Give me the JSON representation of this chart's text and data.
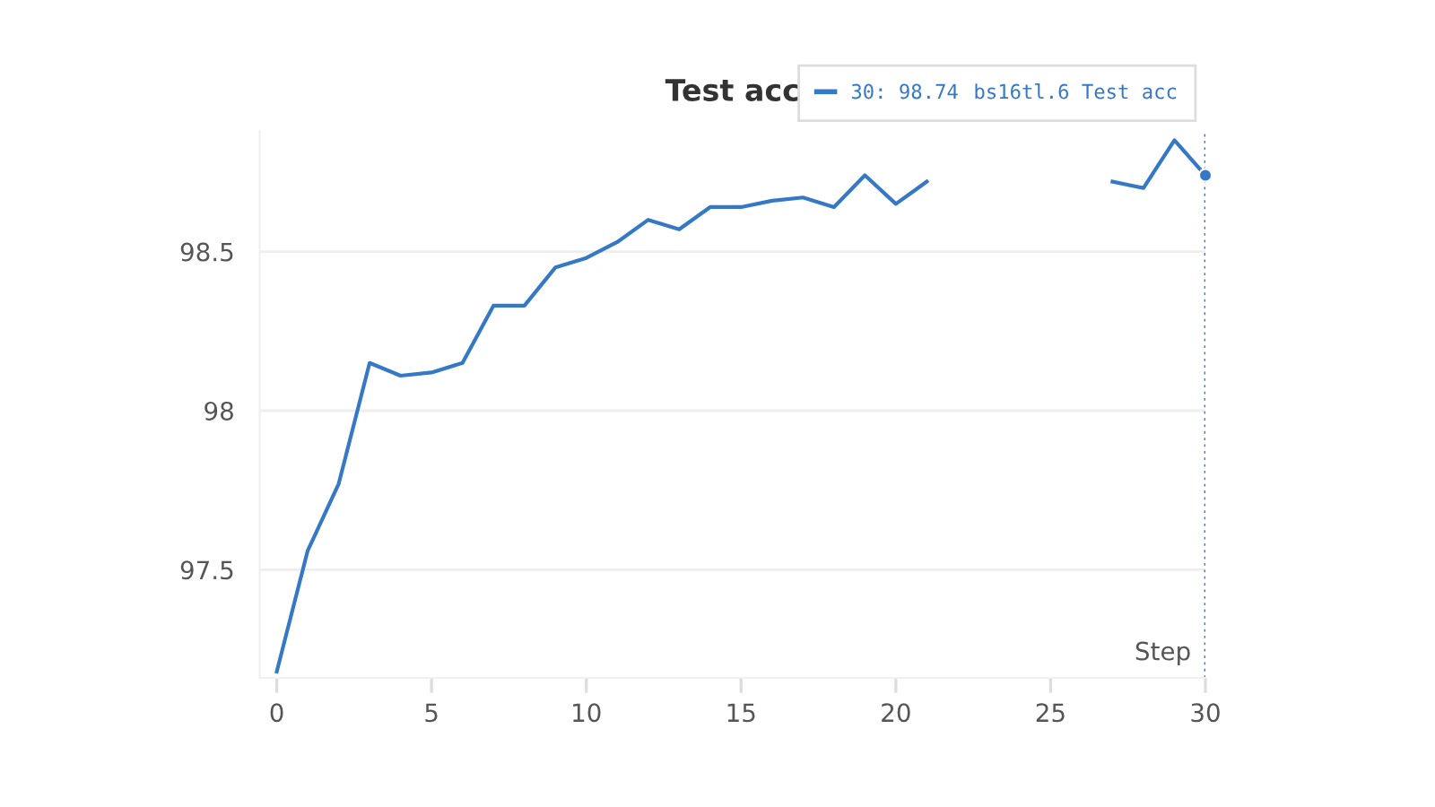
{
  "chart_data": {
    "type": "line",
    "title": "Test acc",
    "xlabel": "Step",
    "x": [
      0,
      1,
      2,
      3,
      4,
      5,
      6,
      7,
      8,
      9,
      10,
      11,
      12,
      13,
      14,
      15,
      16,
      17,
      18,
      19,
      20,
      21,
      22,
      23,
      24,
      25,
      26,
      27,
      28,
      29,
      30
    ],
    "series": [
      {
        "name": "bs16tl.6 Test acc",
        "color": "#3478c6",
        "values": [
          97.18,
          97.56,
          97.77,
          98.15,
          98.11,
          98.12,
          98.15,
          98.33,
          98.33,
          98.45,
          98.48,
          98.53,
          98.6,
          98.57,
          98.64,
          98.64,
          98.66,
          98.67,
          98.64,
          98.74,
          98.65,
          98.72,
          null,
          null,
          null,
          null,
          null,
          98.72,
          98.7,
          98.85,
          98.74
        ]
      },
      {
        "type": "scatter",
        "x": [
          30
        ],
        "values": [
          98.74
        ],
        "color": "#3478c6",
        "marker": "circle"
      }
    ],
    "xlim": [
      -0.55,
      30
    ],
    "ylim": [
      97.16,
      98.88
    ],
    "xticks": [
      0,
      5,
      10,
      15,
      20,
      25,
      30
    ],
    "yticks": [
      97.5,
      98,
      98.5
    ],
    "grid": "y",
    "legend": "top right",
    "annotations": [
      "30: 98.74"
    ],
    "ref_lines": [
      {
        "axis": "x",
        "value": 30,
        "color": "#3478c6",
        "line_style": "dotted"
      }
    ]
  }
}
